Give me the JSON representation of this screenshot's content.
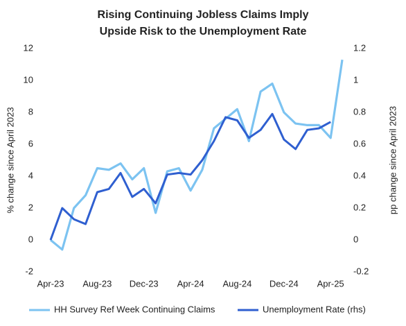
{
  "chart_data": {
    "type": "line",
    "title": [
      "Rising Continuing Jobless Claims Imply",
      "Upside Risk to the Unemployment Rate"
    ],
    "y_label": "% change since April 2023",
    "y2_label": "pp change since April 2023",
    "categories": [
      "Apr-23",
      null,
      null,
      null,
      "Aug-23",
      null,
      null,
      null,
      "Dec-23",
      null,
      null,
      null,
      "Apr-24",
      null,
      null,
      null,
      "Aug-24",
      null,
      null,
      null,
      "Dec-24",
      null,
      null,
      null,
      "Apr-25",
      null
    ],
    "series": [
      {
        "name": "HH Survey Ref Week Continuing Claims",
        "color": "#7cc3f1",
        "axis": "y",
        "values": [
          0,
          -0.6,
          2.0,
          2.8,
          4.5,
          4.4,
          4.8,
          3.8,
          4.5,
          1.7,
          4.3,
          4.5,
          3.1,
          4.4,
          7.0,
          7.6,
          8.2,
          6.2,
          9.3,
          9.8,
          8.0,
          7.3,
          7.2,
          7.2,
          6.4,
          11.3
        ]
      },
      {
        "name": "Unemployment Rate (rhs)",
        "color": "#2f5fd0",
        "axis": "y2",
        "values": [
          0,
          0.2,
          0.13,
          0.1,
          0.3,
          0.32,
          0.42,
          0.27,
          0.32,
          0.23,
          0.41,
          0.42,
          0.41,
          0.5,
          0.62,
          0.77,
          0.75,
          0.64,
          0.69,
          0.79,
          0.63,
          0.57,
          0.69,
          0.7,
          0.74,
          null
        ]
      }
    ],
    "ylim": [
      -2,
      12
    ],
    "yticks": [
      -2,
      0,
      2,
      4,
      6,
      8,
      10,
      12
    ],
    "y2lim": [
      -0.2,
      1.2
    ],
    "y2ticks": [
      -0.2,
      0,
      0.2,
      0.4,
      0.6,
      0.8,
      1,
      1.2
    ],
    "grid": false
  }
}
